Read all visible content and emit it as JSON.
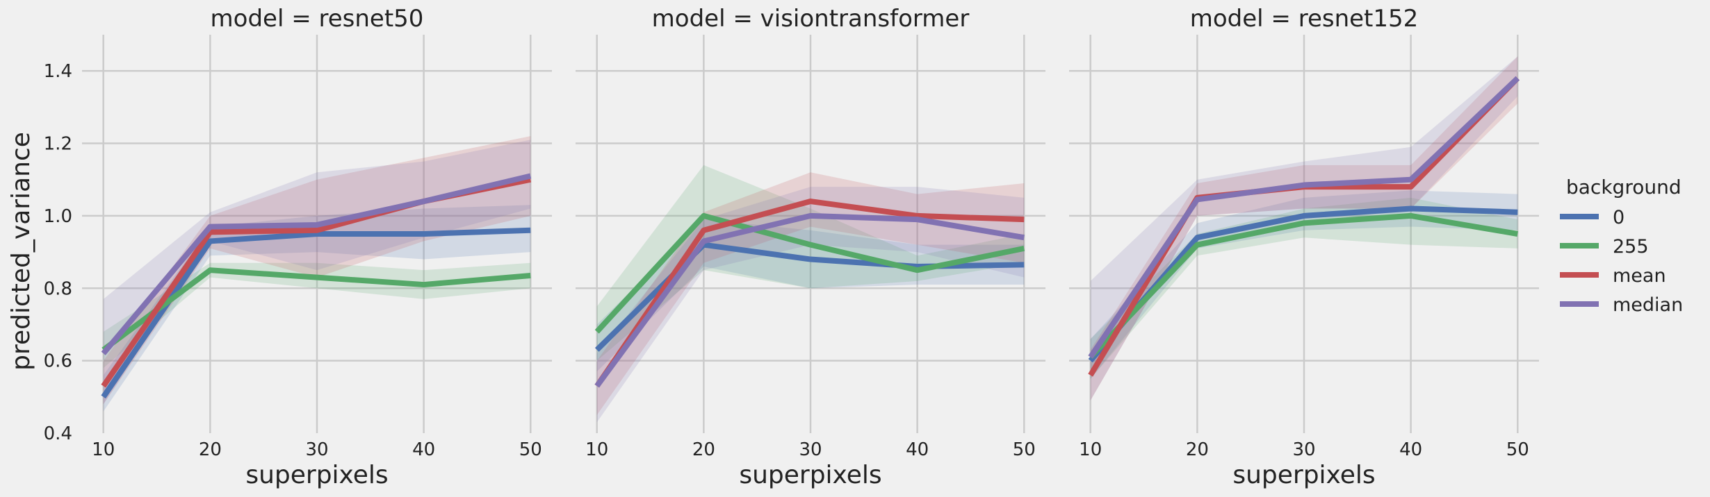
{
  "chart_data": {
    "type": "line",
    "ylabel": "predicted_variance",
    "xlabel": "superpixels",
    "x": [
      10,
      20,
      30,
      40,
      50
    ],
    "xlim": [
      8,
      52
    ],
    "ylim": [
      0.4,
      1.5
    ],
    "yticks": [
      0.4,
      0.6,
      0.8,
      1.0,
      1.2,
      1.4
    ],
    "ytick_labels": [
      "0.4",
      "0.6",
      "0.8",
      "1.0",
      "1.2",
      "1.4"
    ],
    "xticks": [
      10,
      20,
      30,
      40,
      50
    ],
    "xtick_labels": [
      "10",
      "20",
      "30",
      "40",
      "50"
    ],
    "grid": true,
    "legend": {
      "title": "background",
      "placement": "right",
      "entries": [
        "0",
        "255",
        "mean",
        "median"
      ]
    },
    "colors": {
      "0": "#4c72b0",
      "255": "#55a868",
      "mean": "#c44e52",
      "median": "#8172b2"
    },
    "panels": [
      {
        "title": "model = resnet50",
        "series": [
          {
            "name": "0",
            "values": [
              0.5,
              0.93,
              0.95,
              0.95,
              0.96
            ],
            "lower": [
              0.46,
              0.89,
              0.9,
              0.88,
              0.9
            ],
            "upper": [
              0.56,
              0.97,
              1.0,
              1.02,
              1.03
            ]
          },
          {
            "name": "255",
            "values": [
              0.63,
              0.85,
              0.83,
              0.81,
              0.835
            ],
            "lower": [
              0.58,
              0.83,
              0.8,
              0.77,
              0.8
            ],
            "upper": [
              0.68,
              0.87,
              0.87,
              0.85,
              0.87
            ]
          },
          {
            "name": "mean",
            "values": [
              0.53,
              0.955,
              0.96,
              1.04,
              1.1
            ],
            "lower": [
              0.48,
              0.91,
              0.83,
              0.93,
              1.0
            ],
            "upper": [
              0.6,
              1.0,
              1.1,
              1.16,
              1.22
            ]
          },
          {
            "name": "median",
            "values": [
              0.62,
              0.97,
              0.975,
              1.04,
              1.11
            ],
            "lower": [
              0.48,
              0.93,
              0.85,
              0.94,
              1.02
            ],
            "upper": [
              0.77,
              1.01,
              1.12,
              1.15,
              1.21
            ]
          }
        ]
      },
      {
        "title": "model = visiontransformer",
        "series": [
          {
            "name": "0",
            "values": [
              0.63,
              0.92,
              0.88,
              0.86,
              0.865
            ],
            "lower": [
              0.57,
              0.86,
              0.8,
              0.81,
              0.81
            ],
            "upper": [
              0.7,
              0.99,
              0.96,
              0.92,
              0.92
            ]
          },
          {
            "name": "255",
            "values": [
              0.68,
              1.0,
              0.92,
              0.85,
              0.91
            ],
            "lower": [
              0.6,
              0.85,
              0.8,
              0.82,
              0.87
            ],
            "upper": [
              0.75,
              1.14,
              1.02,
              0.89,
              0.95
            ]
          },
          {
            "name": "mean",
            "values": [
              0.53,
              0.96,
              1.04,
              1.0,
              0.99
            ],
            "lower": [
              0.45,
              0.87,
              0.97,
              0.92,
              0.87
            ],
            "upper": [
              0.6,
              1.01,
              1.12,
              1.06,
              1.09
            ]
          },
          {
            "name": "median",
            "values": [
              0.53,
              0.93,
              1.0,
              0.99,
              0.94
            ],
            "lower": [
              0.43,
              0.85,
              0.92,
              0.9,
              0.83
            ],
            "upper": [
              0.62,
              0.99,
              1.08,
              1.08,
              1.05
            ]
          }
        ]
      },
      {
        "title": "model = resnet152",
        "series": [
          {
            "name": "0",
            "values": [
              0.6,
              0.94,
              1.0,
              1.02,
              1.01
            ],
            "lower": [
              0.55,
              0.91,
              0.96,
              0.97,
              0.96
            ],
            "upper": [
              0.66,
              0.98,
              1.05,
              1.07,
              1.06
            ]
          },
          {
            "name": "255",
            "values": [
              0.61,
              0.92,
              0.98,
              1.0,
              0.95
            ],
            "lower": [
              0.55,
              0.89,
              0.94,
              0.92,
              0.91
            ],
            "upper": [
              0.66,
              0.95,
              1.02,
              1.05,
              0.99
            ]
          },
          {
            "name": "mean",
            "values": [
              0.56,
              1.05,
              1.08,
              1.08,
              1.38
            ],
            "lower": [
              0.49,
              1.0,
              1.02,
              1.02,
              1.31
            ],
            "upper": [
              0.63,
              1.09,
              1.14,
              1.14,
              1.44
            ]
          },
          {
            "name": "median",
            "values": [
              0.61,
              1.045,
              1.085,
              1.1,
              1.38
            ],
            "lower": [
              0.49,
              1.0,
              1.02,
              1.02,
              1.33
            ],
            "upper": [
              0.82,
              1.1,
              1.15,
              1.19,
              1.44
            ]
          }
        ]
      }
    ]
  }
}
